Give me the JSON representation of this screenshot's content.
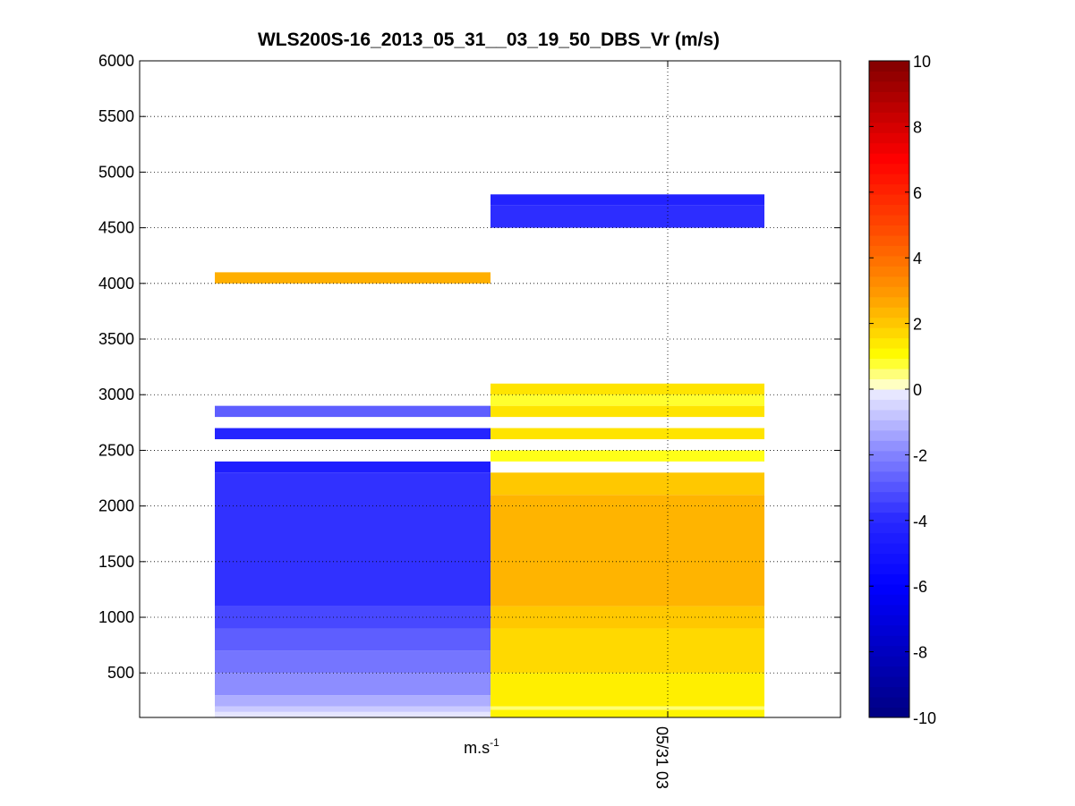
{
  "chart_data": {
    "type": "heatmap",
    "title": "WLS200S-16_2013_05_31__03_19_50_DBS_Vr (m/s)",
    "xlabel": "m.s",
    "xlabel_superscript": "-1",
    "x_tick_label": "05/31 03",
    "ylim": [
      100,
      6000
    ],
    "y_ticks": [
      500,
      1000,
      1500,
      2000,
      2500,
      3000,
      3500,
      4000,
      4500,
      5000,
      5500,
      6000
    ],
    "colorbar": {
      "range": [
        -10,
        10
      ],
      "ticks": [
        -10,
        -8,
        -6,
        -4,
        -2,
        0,
        2,
        4,
        6,
        8,
        10
      ],
      "colormap": "blue-white-yellow-red"
    },
    "grid": true,
    "columns": [
      {
        "bands": [
          {
            "y0": 100,
            "y1": 150,
            "value": -0.2
          },
          {
            "y0": 150,
            "y1": 200,
            "value": -0.7
          },
          {
            "y0": 200,
            "y1": 300,
            "value": -1.2
          },
          {
            "y0": 300,
            "y1": 500,
            "value": -1.8
          },
          {
            "y0": 500,
            "y1": 700,
            "value": -2.3
          },
          {
            "y0": 700,
            "y1": 900,
            "value": -2.8
          },
          {
            "y0": 900,
            "y1": 1100,
            "value": -3.3
          },
          {
            "y0": 1100,
            "y1": 2300,
            "value": -3.8
          },
          {
            "y0": 2300,
            "y1": 2400,
            "value": -4.5
          },
          {
            "y0": 2600,
            "y1": 2700,
            "value": -4.2
          },
          {
            "y0": 2800,
            "y1": 2900,
            "value": -2.8
          },
          {
            "y0": 4000,
            "y1": 4100,
            "value": 2.5
          }
        ]
      },
      {
        "bands": [
          {
            "y0": 100,
            "y1": 170,
            "value": 1.2
          },
          {
            "y0": 170,
            "y1": 200,
            "value": 0.5
          },
          {
            "y0": 200,
            "y1": 500,
            "value": 1.3
          },
          {
            "y0": 500,
            "y1": 900,
            "value": 1.7
          },
          {
            "y0": 900,
            "y1": 1100,
            "value": 2.0
          },
          {
            "y0": 1100,
            "y1": 2100,
            "value": 2.4
          },
          {
            "y0": 2100,
            "y1": 2300,
            "value": 2.0
          },
          {
            "y0": 2400,
            "y1": 2500,
            "value": 0.9
          },
          {
            "y0": 2600,
            "y1": 2700,
            "value": 1.5
          },
          {
            "y0": 2800,
            "y1": 2900,
            "value": 1.5
          },
          {
            "y0": 2900,
            "y1": 3000,
            "value": 0.8
          },
          {
            "y0": 3000,
            "y1": 3100,
            "value": 1.5
          },
          {
            "y0": 4500,
            "y1": 4700,
            "value": -3.9
          },
          {
            "y0": 4700,
            "y1": 4800,
            "value": -4.3
          }
        ]
      }
    ]
  }
}
